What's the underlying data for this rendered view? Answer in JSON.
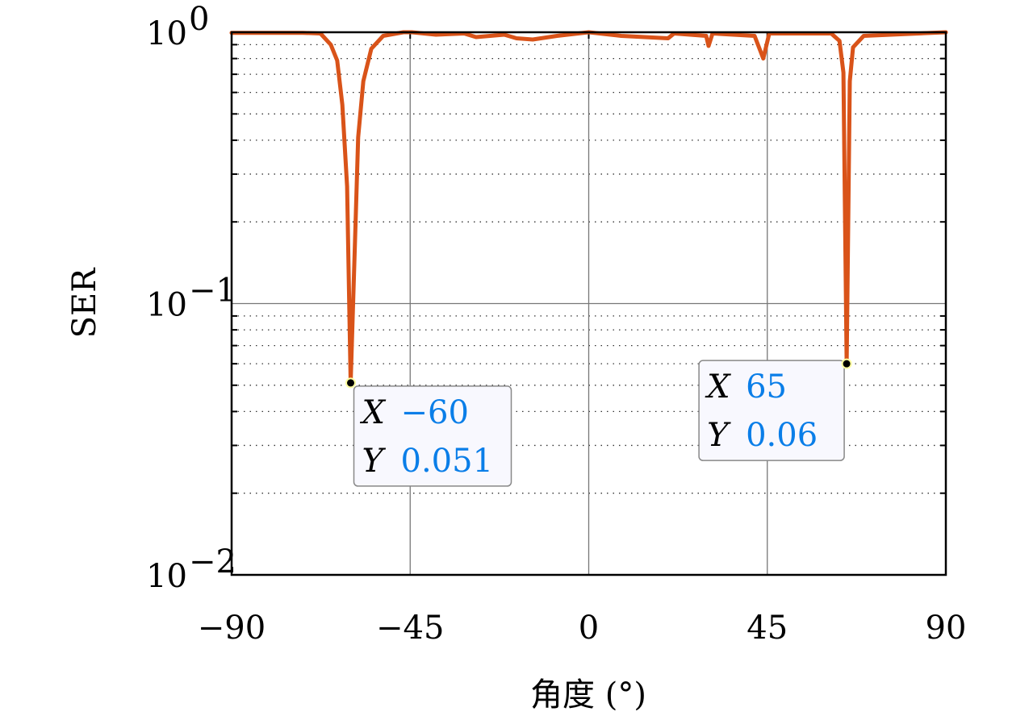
{
  "chart_data": {
    "type": "line",
    "title": "",
    "xlabel": "角度 (°)",
    "ylabel": "SER",
    "xlim": [
      -90,
      90
    ],
    "ylim": [
      0.01,
      1
    ],
    "yscale": "log",
    "grid": true,
    "xticks": [
      -90,
      -45,
      0,
      45,
      90
    ],
    "xtick_labels": [
      "−90",
      "−45",
      "0",
      "45",
      "90"
    ],
    "yticks": [
      0.01,
      0.1,
      1
    ],
    "ytick_labels": [
      {
        "base": "10",
        "exp": "−2"
      },
      {
        "base": "10",
        "exp": "−1"
      },
      {
        "base": "10",
        "exp": "0"
      }
    ],
    "series": [
      {
        "color": "#d95319",
        "x": [
          -90,
          -72,
          -67.6,
          -65,
          -63.4,
          -62.1,
          -60.9,
          -60,
          -58.9,
          -58.1,
          -56.8,
          -54.8,
          -51.8,
          -46.7,
          -44.6,
          -38.5,
          -31.4,
          -28.4,
          -21.3,
          -18.2,
          -14.1,
          -8,
          0,
          8.2,
          20,
          21.5,
          29.6,
          30.2,
          31.2,
          41.8,
          44,
          45.5,
          61.1,
          63.2,
          64.2,
          65,
          65.8,
          66.6,
          69.3,
          90
        ],
        "y": [
          0.995,
          0.995,
          0.99,
          0.9,
          0.787,
          0.54,
          0.27,
          0.051,
          0.17,
          0.41,
          0.66,
          0.87,
          0.97,
          1.0,
          1.0,
          0.98,
          0.99,
          0.96,
          0.98,
          0.95,
          0.94,
          0.97,
          1.0,
          0.97,
          0.95,
          0.99,
          0.97,
          0.89,
          0.99,
          0.97,
          0.8,
          0.99,
          0.99,
          0.93,
          0.71,
          0.06,
          0.66,
          0.88,
          0.97,
          1.0
        ]
      }
    ],
    "datatips": [
      {
        "x_label": "X",
        "x_value": "−60",
        "y_label": "Y",
        "y_value": "0.051",
        "x": -60,
        "y": 0.051,
        "side": "below-right"
      },
      {
        "x_label": "X",
        "x_value": "65",
        "y_label": "Y",
        "y_value": "0.06",
        "x": 65,
        "y": 0.06,
        "side": "below-left"
      }
    ]
  }
}
